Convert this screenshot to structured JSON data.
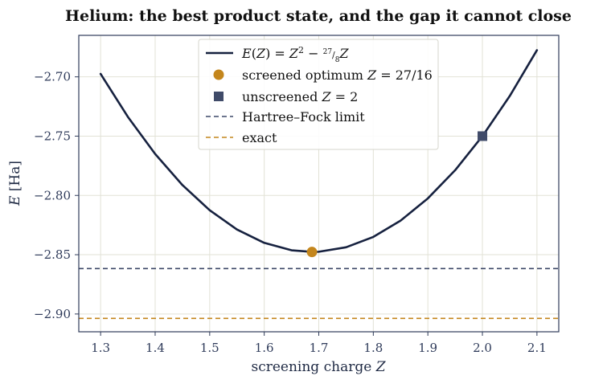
{
  "chart_data": {
    "type": "line",
    "title": "Helium: the best product state, and the gap it cannot close",
    "xlabel": "screening charge Z",
    "ylabel": "E [Ha]",
    "xlim": [
      1.26,
      2.14
    ],
    "ylim": [
      -2.915,
      -2.665
    ],
    "xticks": [
      "1.3",
      "1.4",
      "1.5",
      "1.6",
      "1.7",
      "1.8",
      "1.9",
      "2.0",
      "2.1"
    ],
    "yticks": [
      "−2.70",
      "−2.75",
      "−2.80",
      "−2.85",
      "−2.90"
    ],
    "grid": true,
    "legend_position": "top-center",
    "series": [
      {
        "name": "E(Z) = Z² − (27/8)Z",
        "kind": "curve",
        "color": "#16213f",
        "x": [
          1.3,
          1.35,
          1.4,
          1.45,
          1.5,
          1.55,
          1.6,
          1.65,
          1.6875,
          1.7,
          1.75,
          1.8,
          1.85,
          1.9,
          1.95,
          2.0,
          2.05,
          2.1
        ],
        "y": [
          -2.6975,
          -2.73375,
          -2.765,
          -2.79125,
          -2.8125,
          -2.82875,
          -2.84,
          -2.84625,
          -2.84766,
          -2.8475,
          -2.84375,
          -2.835,
          -2.82125,
          -2.8025,
          -2.77875,
          -2.75,
          -2.71625,
          -2.6775
        ]
      },
      {
        "name": "screened optimum Z = 27/16",
        "kind": "marker-circle",
        "color": "#c4861c",
        "x": [
          1.6875
        ],
        "y": [
          -2.8477
        ]
      },
      {
        "name": "unscreened Z = 2",
        "kind": "marker-square",
        "color": "#404b69",
        "x": [
          2.0
        ],
        "y": [
          -2.75
        ]
      },
      {
        "name": "Hartree–Fock limit",
        "kind": "hline",
        "color": "#3d4868",
        "y": -2.8617
      },
      {
        "name": "exact",
        "kind": "hline",
        "color": "#c4861c",
        "y": -2.9037
      }
    ]
  }
}
